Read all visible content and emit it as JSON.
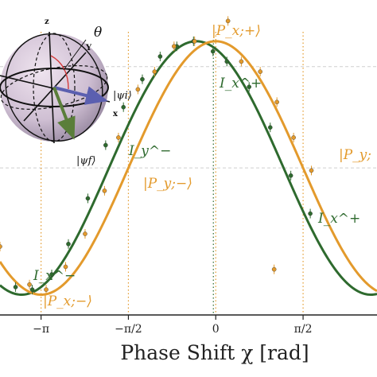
{
  "chart_data": {
    "type": "line",
    "title": "",
    "xlabel": "Phase Shift χ [rad]",
    "ylabel": "",
    "xlim": [
      -3.88,
      2.9
    ],
    "ylim": [
      -0.08,
      1.1
    ],
    "xticks": [
      {
        "value": -3.14159,
        "label": "−π"
      },
      {
        "value": -1.5708,
        "label": "−π/2"
      },
      {
        "value": 0,
        "label": "0"
      },
      {
        "value": 1.5708,
        "label": "π/2"
      }
    ],
    "grid": {
      "vertical_dotted_orange": [
        -3.14159,
        -1.5708,
        0,
        1.5708
      ],
      "vertical_dotted_green": [
        0
      ],
      "horizontal_dashed": [
        0.9,
        0.5
      ]
    },
    "colors": {
      "green": "#2e6a2e",
      "orange": "#e39a2c",
      "grid": "#cfcfcf",
      "axis": "#222222"
    },
    "series": [
      {
        "color": "#2e6a2e",
        "fit": {
          "model": "cosine",
          "center": -0.35,
          "min": 0.0,
          "max": 1.0
        },
        "points": [
          {
            "x": -3.6,
            "y": 0.03
          },
          {
            "x": -3.3,
            "y": 0.02
          },
          {
            "x": -2.95,
            "y": 0.08
          },
          {
            "x": -2.65,
            "y": 0.2
          },
          {
            "x": -2.3,
            "y": 0.38
          },
          {
            "x": -1.98,
            "y": 0.59
          },
          {
            "x": -1.66,
            "y": 0.74
          },
          {
            "x": -1.32,
            "y": 0.85
          },
          {
            "x": -1.0,
            "y": 0.94
          },
          {
            "x": -0.7,
            "y": 0.98
          },
          {
            "x": -0.4,
            "y": 1.0
          },
          {
            "x": -0.05,
            "y": 0.96
          },
          {
            "x": 0.2,
            "y": 0.92
          },
          {
            "x": 0.6,
            "y": 0.82
          },
          {
            "x": 0.98,
            "y": 0.66
          },
          {
            "x": 1.35,
            "y": 0.47
          },
          {
            "x": 1.7,
            "y": 0.32
          }
        ]
      },
      {
        "color": "#e39a2c",
        "fit": {
          "model": "cosine",
          "center": 0.0,
          "min": 0.0,
          "max": 1.0
        },
        "points": [
          {
            "x": -3.88,
            "y": 0.19
          },
          {
            "x": -3.35,
            "y": 0.04
          },
          {
            "x": -3.05,
            "y": 0.02
          },
          {
            "x": -2.7,
            "y": 0.11
          },
          {
            "x": -2.35,
            "y": 0.24
          },
          {
            "x": -2.0,
            "y": 0.41
          },
          {
            "x": -1.75,
            "y": 0.62
          },
          {
            "x": -1.4,
            "y": 0.81
          },
          {
            "x": -1.1,
            "y": 0.88
          },
          {
            "x": -0.75,
            "y": 0.98
          },
          {
            "x": -0.38,
            "y": 1.0
          },
          {
            "x": 0.22,
            "y": 1.08
          },
          {
            "x": 0.46,
            "y": 0.92
          },
          {
            "x": 0.8,
            "y": 0.88
          },
          {
            "x": 1.1,
            "y": 0.76
          },
          {
            "x": 1.4,
            "y": 0.62
          },
          {
            "x": 1.72,
            "y": 0.49
          },
          {
            "x": 1.05,
            "y": 0.1
          }
        ]
      }
    ],
    "annotations": [
      {
        "id": "ix-minus",
        "text": "I_x^−",
        "color": "#2e6a2e"
      },
      {
        "id": "iy-minus",
        "text": "I_y^−",
        "color": "#2e6a2e"
      },
      {
        "id": "ix-plus-top",
        "text": "I_x^+",
        "color": "#2e6a2e"
      },
      {
        "id": "ix-plus-right",
        "text": "I_x^+",
        "color": "#2e6a2e"
      },
      {
        "id": "px-plus",
        "text": "|P_x;+⟩",
        "color": "#e39a2c"
      },
      {
        "id": "py-minus",
        "text": "|P_y;−⟩",
        "color": "#e39a2c"
      },
      {
        "id": "py-plus",
        "text": "|P_y;",
        "color": "#e39a2c"
      },
      {
        "id": "px-minus",
        "text": "|P_x;−⟩",
        "color": "#e39a2c"
      }
    ]
  },
  "bloch_sphere": {
    "axis_labels": {
      "z": "z",
      "y": "Y",
      "x": "x"
    },
    "theta_label": "θ",
    "psi_i_label": "|ψi⟩",
    "psi_f_label": "|ψf⟩"
  }
}
